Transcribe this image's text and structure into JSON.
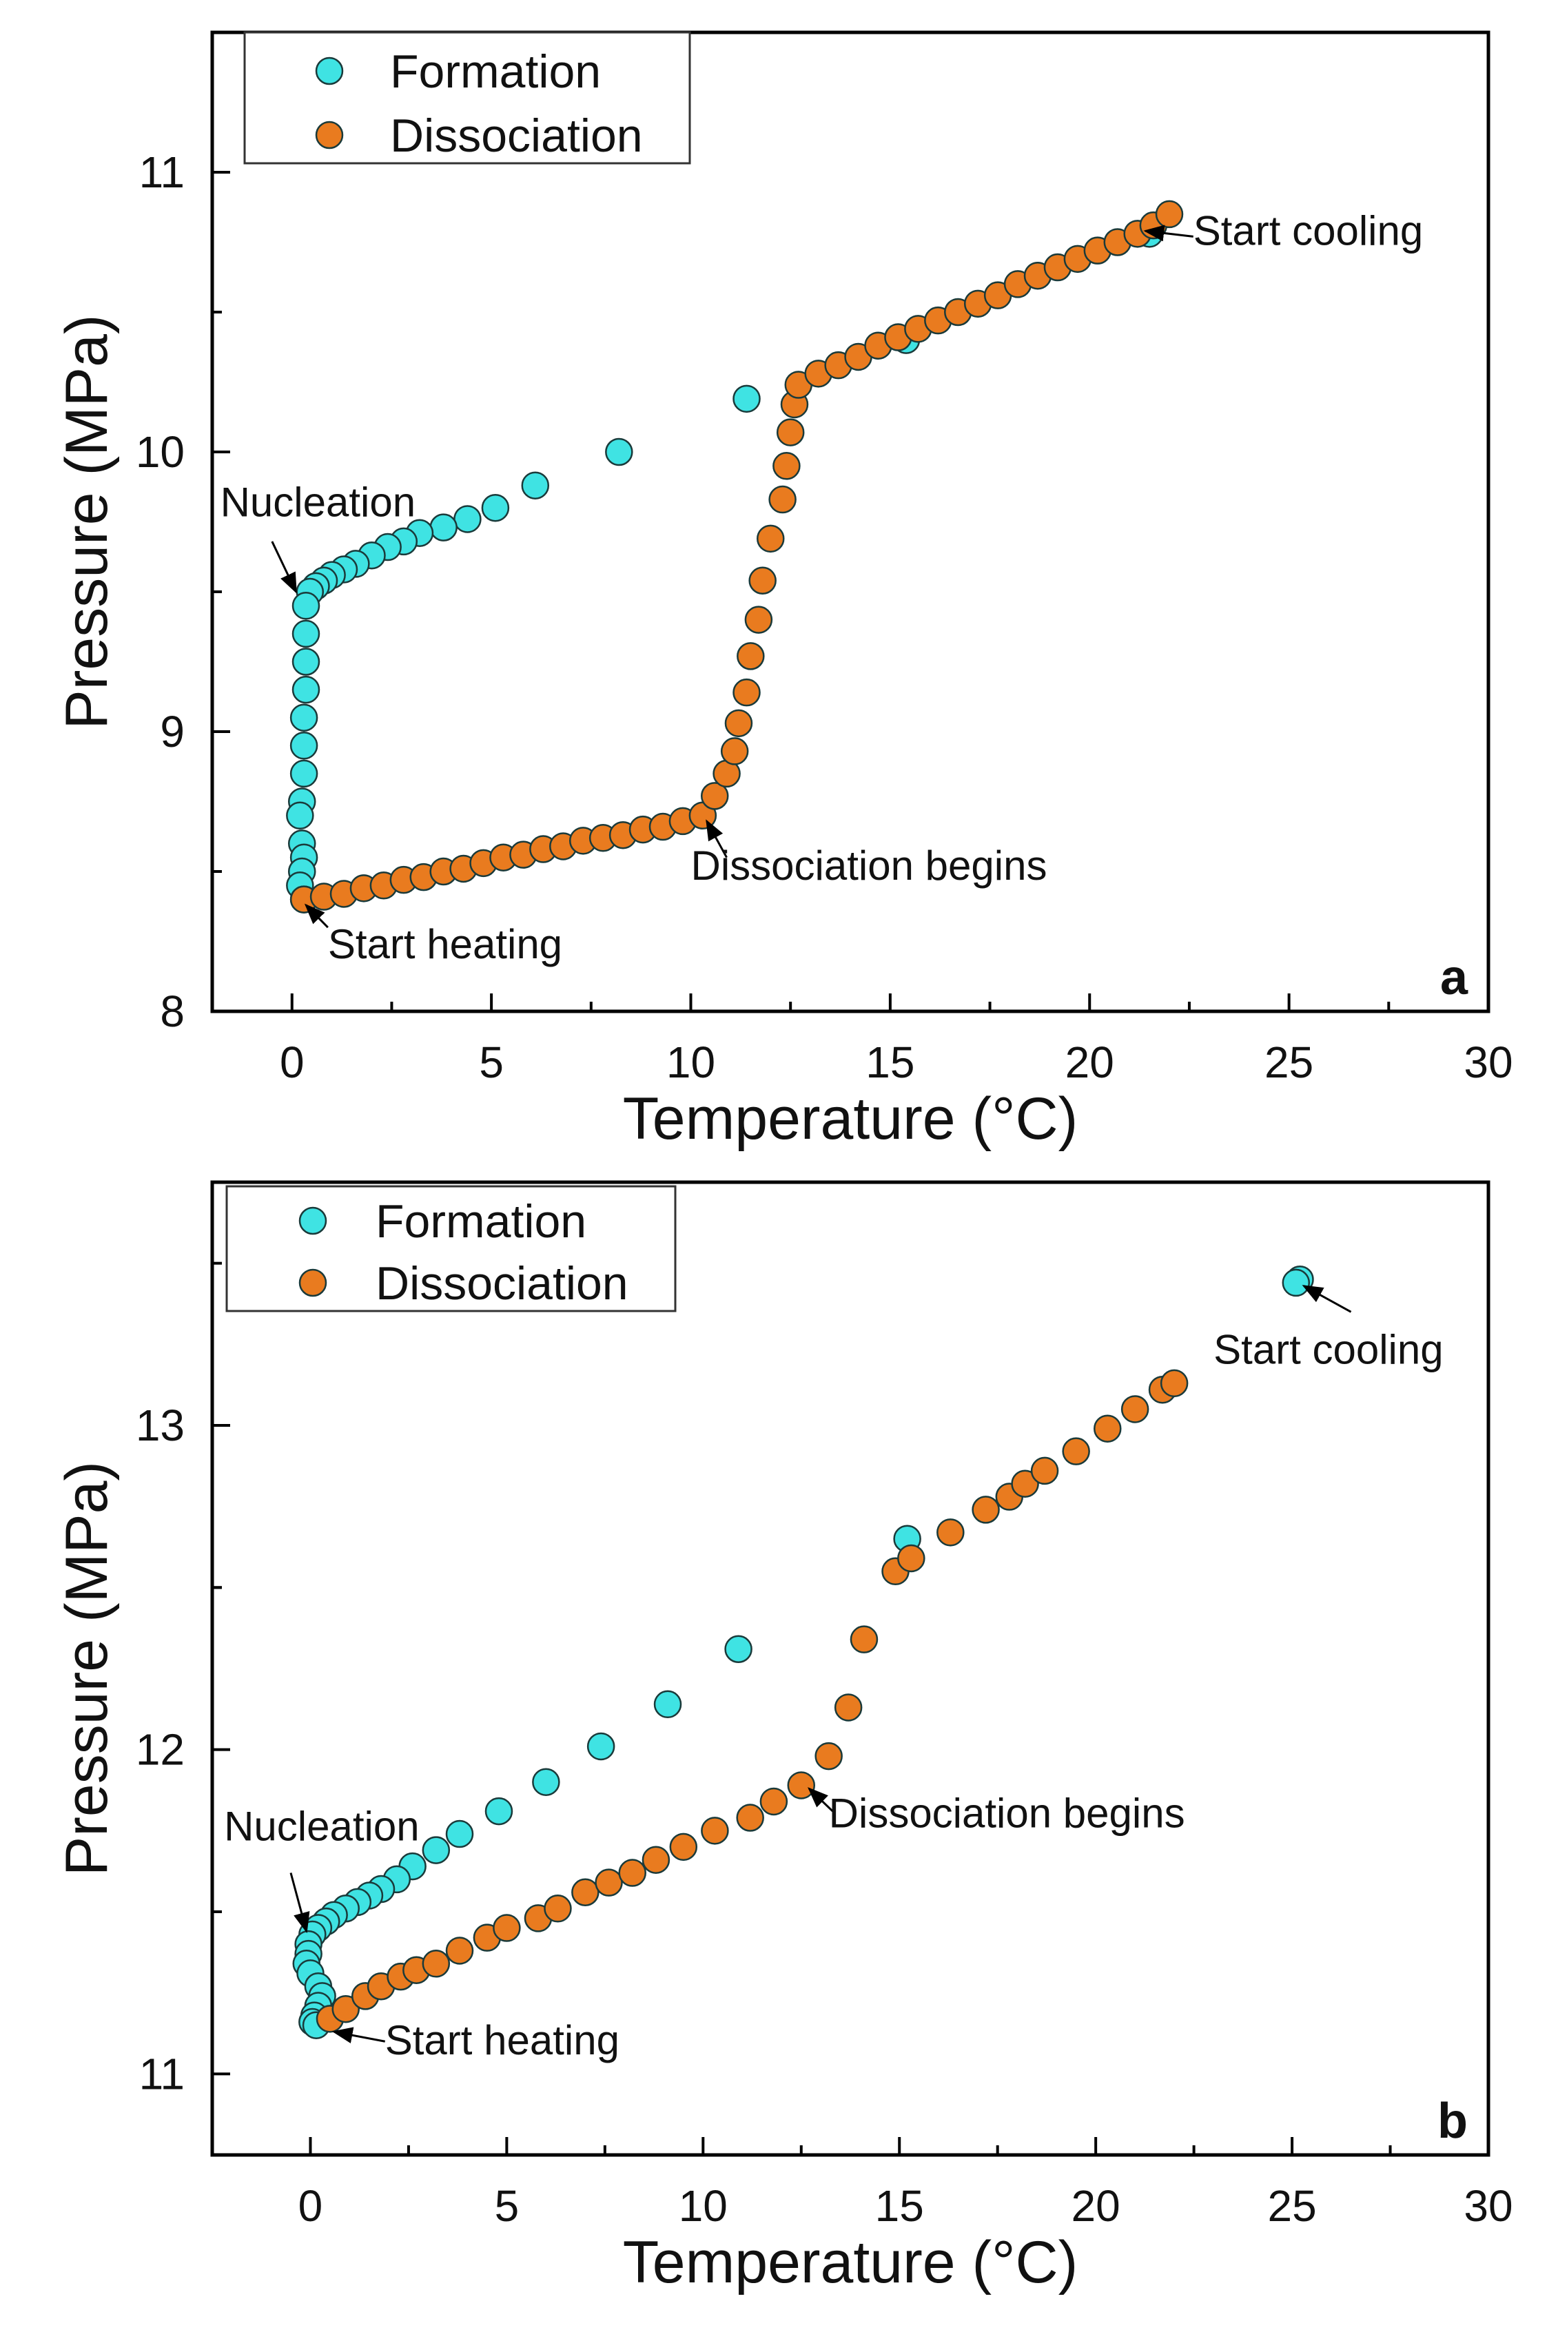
{
  "colors": {
    "formation": "#3fe3e3",
    "dissociation": "#e97b1f",
    "marker_edge": "#1a3a3a",
    "axis": "#000000"
  },
  "chart_data": [
    {
      "type": "scatter",
      "panel_label": "a",
      "xlabel": "Temperature (°C)",
      "ylabel": "Pressure (MPa)",
      "xlim": [
        -2,
        30
      ],
      "ylim": [
        8,
        11.5
      ],
      "xticks": [
        0,
        5,
        10,
        15,
        20,
        25,
        30
      ],
      "xtick_labels": [
        "0",
        "5",
        "10",
        "15",
        "20",
        "25",
        "30"
      ],
      "yticks": [
        8,
        9,
        10,
        11
      ],
      "ytick_labels": [
        "8",
        "9",
        "10",
        "11"
      ],
      "grid": false,
      "legend": {
        "placement": "top-left",
        "entries": [
          "Formation",
          "Dissociation"
        ]
      },
      "series": [
        {
          "name": "Formation",
          "points": [
            [
              21.5,
              10.78
            ],
            [
              15.4,
              10.4
            ],
            [
              11.4,
              10.19
            ],
            [
              8.2,
              10.0
            ],
            [
              6.1,
              9.88
            ],
            [
              5.1,
              9.8
            ],
            [
              4.4,
              9.76
            ],
            [
              3.8,
              9.73
            ],
            [
              3.2,
              9.71
            ],
            [
              2.8,
              9.68
            ],
            [
              2.4,
              9.66
            ],
            [
              2.0,
              9.63
            ],
            [
              1.6,
              9.6
            ],
            [
              1.3,
              9.58
            ],
            [
              1.0,
              9.56
            ],
            [
              0.8,
              9.54
            ],
            [
              0.6,
              9.52
            ],
            [
              0.45,
              9.5
            ],
            [
              0.35,
              9.45
            ],
            [
              0.35,
              9.35
            ],
            [
              0.35,
              9.25
            ],
            [
              0.35,
              9.15
            ],
            [
              0.3,
              9.05
            ],
            [
              0.3,
              8.95
            ],
            [
              0.3,
              8.85
            ],
            [
              0.25,
              8.75
            ],
            [
              0.2,
              8.7
            ],
            [
              0.25,
              8.6
            ],
            [
              0.3,
              8.55
            ],
            [
              0.25,
              8.5
            ],
            [
              0.2,
              8.45
            ],
            [
              0.3,
              8.4
            ]
          ]
        },
        {
          "name": "Dissociation",
          "points": [
            [
              0.3,
              8.4
            ],
            [
              0.8,
              8.41
            ],
            [
              1.3,
              8.42
            ],
            [
              1.8,
              8.44
            ],
            [
              2.3,
              8.45
            ],
            [
              2.8,
              8.47
            ],
            [
              3.3,
              8.48
            ],
            [
              3.8,
              8.5
            ],
            [
              4.3,
              8.51
            ],
            [
              4.8,
              8.53
            ],
            [
              5.3,
              8.55
            ],
            [
              5.8,
              8.56
            ],
            [
              6.3,
              8.58
            ],
            [
              6.8,
              8.59
            ],
            [
              7.3,
              8.61
            ],
            [
              7.8,
              8.62
            ],
            [
              8.3,
              8.63
            ],
            [
              8.8,
              8.65
            ],
            [
              9.3,
              8.66
            ],
            [
              9.8,
              8.68
            ],
            [
              10.3,
              8.7
            ],
            [
              10.6,
              8.77
            ],
            [
              10.9,
              8.85
            ],
            [
              11.1,
              8.93
            ],
            [
              11.2,
              9.03
            ],
            [
              11.4,
              9.14
            ],
            [
              11.5,
              9.27
            ],
            [
              11.7,
              9.4
            ],
            [
              11.8,
              9.54
            ],
            [
              12.0,
              9.69
            ],
            [
              12.3,
              9.83
            ],
            [
              12.4,
              9.95
            ],
            [
              12.5,
              10.07
            ],
            [
              12.6,
              10.17
            ],
            [
              12.7,
              10.24
            ],
            [
              13.2,
              10.28
            ],
            [
              13.7,
              10.31
            ],
            [
              14.2,
              10.34
            ],
            [
              14.7,
              10.38
            ],
            [
              15.2,
              10.41
            ],
            [
              15.7,
              10.44
            ],
            [
              16.2,
              10.47
            ],
            [
              16.7,
              10.5
            ],
            [
              17.2,
              10.53
            ],
            [
              17.7,
              10.56
            ],
            [
              18.2,
              10.6
            ],
            [
              18.7,
              10.63
            ],
            [
              19.2,
              10.66
            ],
            [
              19.7,
              10.69
            ],
            [
              20.2,
              10.72
            ],
            [
              20.7,
              10.75
            ],
            [
              21.2,
              10.78
            ],
            [
              21.6,
              10.81
            ],
            [
              22.0,
              10.85
            ]
          ]
        }
      ],
      "annotations": [
        {
          "text": "Nucleation",
          "at": [
            -1.8,
            9.77
          ],
          "arrow_to": [
            0.1,
            9.5
          ],
          "arrow_from": [
            -0.5,
            9.68
          ]
        },
        {
          "text": "Start heating",
          "at": [
            0.9,
            8.19
          ],
          "arrow_to": [
            0.35,
            8.38
          ],
          "arrow_from": [
            0.9,
            8.3
          ]
        },
        {
          "text": "Dissociation begins",
          "at": [
            10,
            8.47
          ],
          "arrow_to": [
            10.4,
            8.68
          ],
          "arrow_from": [
            10.9,
            8.55
          ]
        },
        {
          "text": "Start cooling",
          "at": [
            22.6,
            10.74
          ],
          "arrow_to": [
            21.4,
            10.79
          ],
          "arrow_from": [
            22.6,
            10.77
          ]
        }
      ]
    },
    {
      "type": "scatter",
      "panel_label": "b",
      "xlabel": "Temperature (°C)",
      "ylabel": "Pressure (MPa)",
      "xlim": [
        -2.5,
        30
      ],
      "ylim": [
        10.75,
        13.75
      ],
      "xticks": [
        0,
        5,
        10,
        15,
        20,
        25,
        30
      ],
      "xtick_labels": [
        "0",
        "5",
        "10",
        "15",
        "20",
        "25",
        "30"
      ],
      "yticks": [
        11,
        12,
        13
      ],
      "ytick_labels": [
        "11",
        "12",
        "13"
      ],
      "grid": false,
      "legend": {
        "placement": "top-left",
        "entries": [
          "Formation",
          "Dissociation"
        ]
      },
      "series": [
        {
          "name": "Formation",
          "points": [
            [
              25.2,
              13.45
            ],
            [
              25.1,
              13.44
            ],
            [
              15.2,
              12.65
            ],
            [
              10.9,
              12.31
            ],
            [
              9.1,
              12.14
            ],
            [
              7.4,
              12.01
            ],
            [
              6.0,
              11.9
            ],
            [
              4.8,
              11.81
            ],
            [
              3.8,
              11.74
            ],
            [
              3.2,
              11.69
            ],
            [
              2.6,
              11.64
            ],
            [
              2.2,
              11.6
            ],
            [
              1.8,
              11.57
            ],
            [
              1.5,
              11.55
            ],
            [
              1.2,
              11.53
            ],
            [
              0.9,
              11.51
            ],
            [
              0.6,
              11.49
            ],
            [
              0.4,
              11.47
            ],
            [
              0.2,
              11.45
            ],
            [
              0.05,
              11.43
            ],
            [
              -0.05,
              11.4
            ],
            [
              -0.05,
              11.37
            ],
            [
              -0.1,
              11.34
            ],
            [
              0.0,
              11.31
            ],
            [
              0.2,
              11.27
            ],
            [
              0.3,
              11.24
            ],
            [
              0.2,
              11.21
            ],
            [
              0.1,
              11.18
            ],
            [
              0.05,
              11.16
            ],
            [
              0.15,
              11.15
            ]
          ]
        },
        {
          "name": "Dissociation",
          "points": [
            [
              0.5,
              11.17
            ],
            [
              0.9,
              11.2
            ],
            [
              1.4,
              11.24
            ],
            [
              1.8,
              11.27
            ],
            [
              2.3,
              11.3
            ],
            [
              2.7,
              11.32
            ],
            [
              3.2,
              11.34
            ],
            [
              3.8,
              11.38
            ],
            [
              4.5,
              11.42
            ],
            [
              5.0,
              11.45
            ],
            [
              5.8,
              11.48
            ],
            [
              6.3,
              11.51
            ],
            [
              7.0,
              11.56
            ],
            [
              7.6,
              11.59
            ],
            [
              8.2,
              11.62
            ],
            [
              8.8,
              11.66
            ],
            [
              9.5,
              11.7
            ],
            [
              10.3,
              11.75
            ],
            [
              11.2,
              11.79
            ],
            [
              11.8,
              11.84
            ],
            [
              12.5,
              11.89
            ],
            [
              13.2,
              11.98
            ],
            [
              13.7,
              12.13
            ],
            [
              14.1,
              12.34
            ],
            [
              14.9,
              12.55
            ],
            [
              15.3,
              12.59
            ],
            [
              16.3,
              12.67
            ],
            [
              17.2,
              12.74
            ],
            [
              17.8,
              12.78
            ],
            [
              18.2,
              12.82
            ],
            [
              18.7,
              12.86
            ],
            [
              19.5,
              12.92
            ],
            [
              20.3,
              12.99
            ],
            [
              21.0,
              13.05
            ],
            [
              21.7,
              13.11
            ],
            [
              22.0,
              13.13
            ]
          ]
        }
      ],
      "annotations": [
        {
          "text": "Nucleation",
          "at": [
            -2.2,
            11.72
          ],
          "arrow_to": [
            -0.1,
            11.44
          ],
          "arrow_from": [
            -0.5,
            11.62
          ]
        },
        {
          "text": "Start heating",
          "at": [
            1.9,
            11.06
          ],
          "arrow_to": [
            0.6,
            11.13
          ],
          "arrow_from": [
            1.9,
            11.1
          ]
        },
        {
          "text": "Dissociation begins",
          "at": [
            13.2,
            11.76
          ],
          "arrow_to": [
            12.7,
            11.88
          ],
          "arrow_from": [
            13.3,
            11.81
          ]
        },
        {
          "text": "Start cooling",
          "at": [
            23.0,
            13.19
          ],
          "arrow_to": [
            25.3,
            13.43
          ],
          "arrow_from": [
            26.5,
            13.35
          ]
        }
      ]
    }
  ]
}
